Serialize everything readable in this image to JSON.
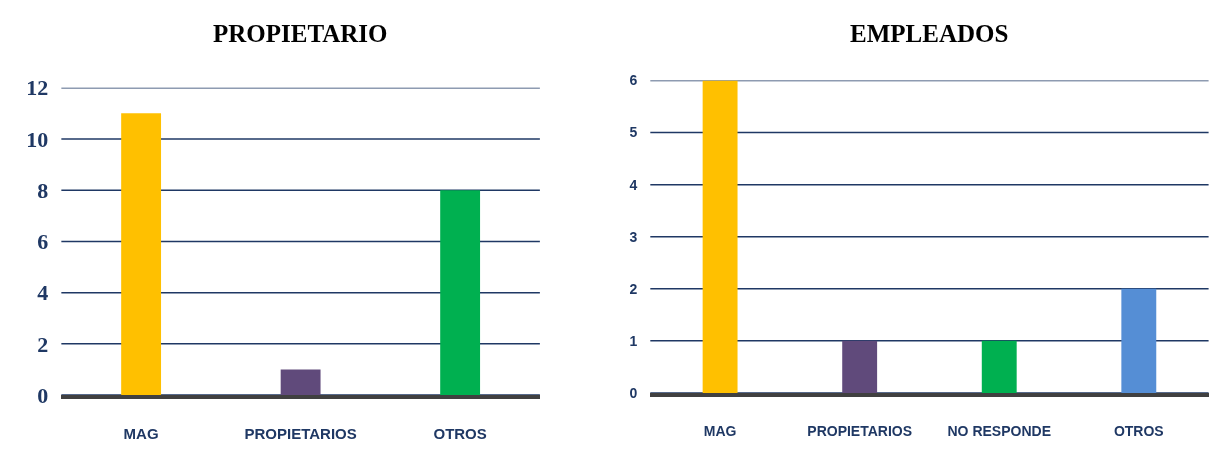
{
  "chart_data": [
    {
      "type": "bar",
      "title": "PROPIETARIO",
      "categories": [
        "MAG",
        "PROPIETARIOS",
        "OTROS"
      ],
      "values": [
        11,
        1,
        8
      ],
      "colors": [
        "#ffc000",
        "#604a7b",
        "#00b050"
      ],
      "ylim": [
        0,
        12
      ],
      "yticks": [
        0,
        2,
        4,
        6,
        8,
        10,
        12
      ],
      "grid": "y"
    },
    {
      "type": "bar",
      "title": "EMPLEADOS",
      "categories": [
        "MAG",
        "PROPIETARIOS",
        "NO RESPONDE",
        "OTROS"
      ],
      "values": [
        6,
        1,
        1,
        2
      ],
      "colors": [
        "#ffc000",
        "#604a7b",
        "#00b050",
        "#558ed5"
      ],
      "ylim": [
        0,
        6
      ],
      "yticks": [
        0,
        1,
        2,
        3,
        4,
        5,
        6
      ],
      "grid": "y"
    }
  ]
}
